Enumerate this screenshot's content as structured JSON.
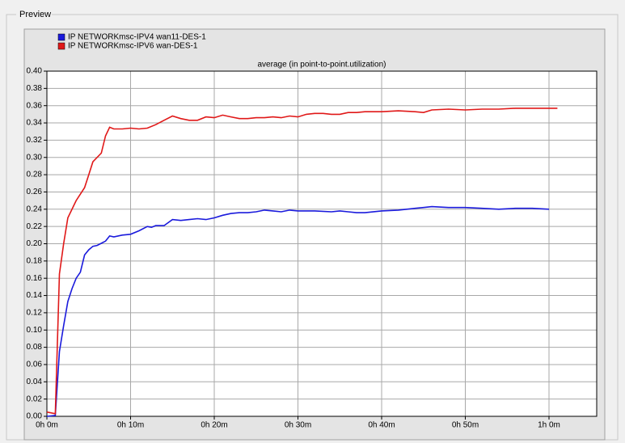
{
  "window": {
    "group_label": "Preview"
  },
  "chart_data": {
    "type": "line",
    "title": "average (in point-to-point.utilization)",
    "xlim": [
      0,
      65.7
    ],
    "ylim": [
      0,
      0.4
    ],
    "xticks": [
      {
        "value": 0,
        "label": "0h 0m"
      },
      {
        "value": 10,
        "label": "0h 10m"
      },
      {
        "value": 20,
        "label": "0h 20m"
      },
      {
        "value": 30,
        "label": "0h 30m"
      },
      {
        "value": 40,
        "label": "0h 40m"
      },
      {
        "value": 50,
        "label": "0h 50m"
      },
      {
        "value": 60,
        "label": "1h 0m"
      }
    ],
    "yticks": [
      {
        "value": 0,
        "label": "0.00"
      },
      {
        "value": 0.02,
        "label": "0.02"
      },
      {
        "value": 0.04,
        "label": "0.04"
      },
      {
        "value": 0.06,
        "label": "0.06"
      },
      {
        "value": 0.08,
        "label": "0.08"
      },
      {
        "value": 0.1,
        "label": "0.10"
      },
      {
        "value": 0.12,
        "label": "0.12"
      },
      {
        "value": 0.14,
        "label": "0.14"
      },
      {
        "value": 0.16,
        "label": "0.16"
      },
      {
        "value": 0.18,
        "label": "0.18"
      },
      {
        "value": 0.2,
        "label": "0.20"
      },
      {
        "value": 0.22,
        "label": "0.22"
      },
      {
        "value": 0.24,
        "label": "0.24"
      },
      {
        "value": 0.26,
        "label": "0.26"
      },
      {
        "value": 0.28,
        "label": "0.28"
      },
      {
        "value": 0.3,
        "label": "0.30"
      },
      {
        "value": 0.32,
        "label": "0.32"
      },
      {
        "value": 0.34,
        "label": "0.34"
      },
      {
        "value": 0.36,
        "label": "0.36"
      },
      {
        "value": 0.38,
        "label": "0.38"
      },
      {
        "value": 0.4,
        "label": "0.40"
      }
    ],
    "grid": true,
    "series": [
      {
        "name": "IP NETWORKmsc-IPV4  wan11-DES-1",
        "color": "#1a1adc",
        "x": [
          0,
          1,
          1.5,
          2,
          2.5,
          3,
          3.5,
          4,
          4.5,
          5,
          5.5,
          6,
          7,
          7.5,
          8,
          9,
          10,
          11,
          12,
          12.5,
          13,
          14,
          15,
          16,
          17,
          18,
          19,
          20,
          21,
          22,
          23,
          24,
          25,
          26,
          27,
          28,
          29,
          30,
          32,
          34,
          35,
          36,
          37,
          38,
          40,
          42,
          44,
          45,
          46,
          48,
          50,
          52,
          54,
          56,
          58,
          60
        ],
        "values": [
          0,
          0.001,
          0.075,
          0.105,
          0.133,
          0.148,
          0.16,
          0.167,
          0.187,
          0.193,
          0.197,
          0.198,
          0.203,
          0.209,
          0.208,
          0.21,
          0.211,
          0.215,
          0.22,
          0.219,
          0.221,
          0.221,
          0.228,
          0.227,
          0.228,
          0.229,
          0.228,
          0.23,
          0.233,
          0.235,
          0.236,
          0.236,
          0.237,
          0.239,
          0.238,
          0.237,
          0.239,
          0.238,
          0.238,
          0.237,
          0.238,
          0.237,
          0.236,
          0.236,
          0.238,
          0.239,
          0.241,
          0.242,
          0.243,
          0.242,
          0.242,
          0.241,
          0.24,
          0.241,
          0.241,
          0.24
        ]
      },
      {
        "name": "IP NETWORKmsc-IPV6 wan-DES-1",
        "color": "#e01818",
        "x": [
          0,
          1,
          1.5,
          2,
          2.5,
          3.5,
          4.5,
          5,
          5.5,
          6.5,
          7,
          7.5,
          8,
          9,
          10,
          11,
          12,
          13,
          14,
          15,
          16,
          17,
          18,
          19,
          20,
          21,
          22,
          23,
          24,
          25,
          26,
          27,
          28,
          29,
          30,
          31,
          32,
          33,
          34,
          35,
          36,
          37,
          38,
          40,
          42,
          44,
          45,
          46,
          48,
          50,
          52,
          54,
          56,
          58,
          60,
          61
        ],
        "values": [
          0.005,
          0.003,
          0.165,
          0.2,
          0.23,
          0.25,
          0.265,
          0.28,
          0.295,
          0.305,
          0.325,
          0.335,
          0.333,
          0.333,
          0.334,
          0.333,
          0.334,
          0.338,
          0.343,
          0.348,
          0.345,
          0.343,
          0.343,
          0.347,
          0.346,
          0.349,
          0.347,
          0.345,
          0.345,
          0.346,
          0.346,
          0.347,
          0.346,
          0.348,
          0.347,
          0.35,
          0.351,
          0.351,
          0.35,
          0.35,
          0.352,
          0.352,
          0.353,
          0.353,
          0.354,
          0.353,
          0.352,
          0.355,
          0.356,
          0.355,
          0.356,
          0.356,
          0.357,
          0.357,
          0.357,
          0.357
        ]
      }
    ]
  }
}
